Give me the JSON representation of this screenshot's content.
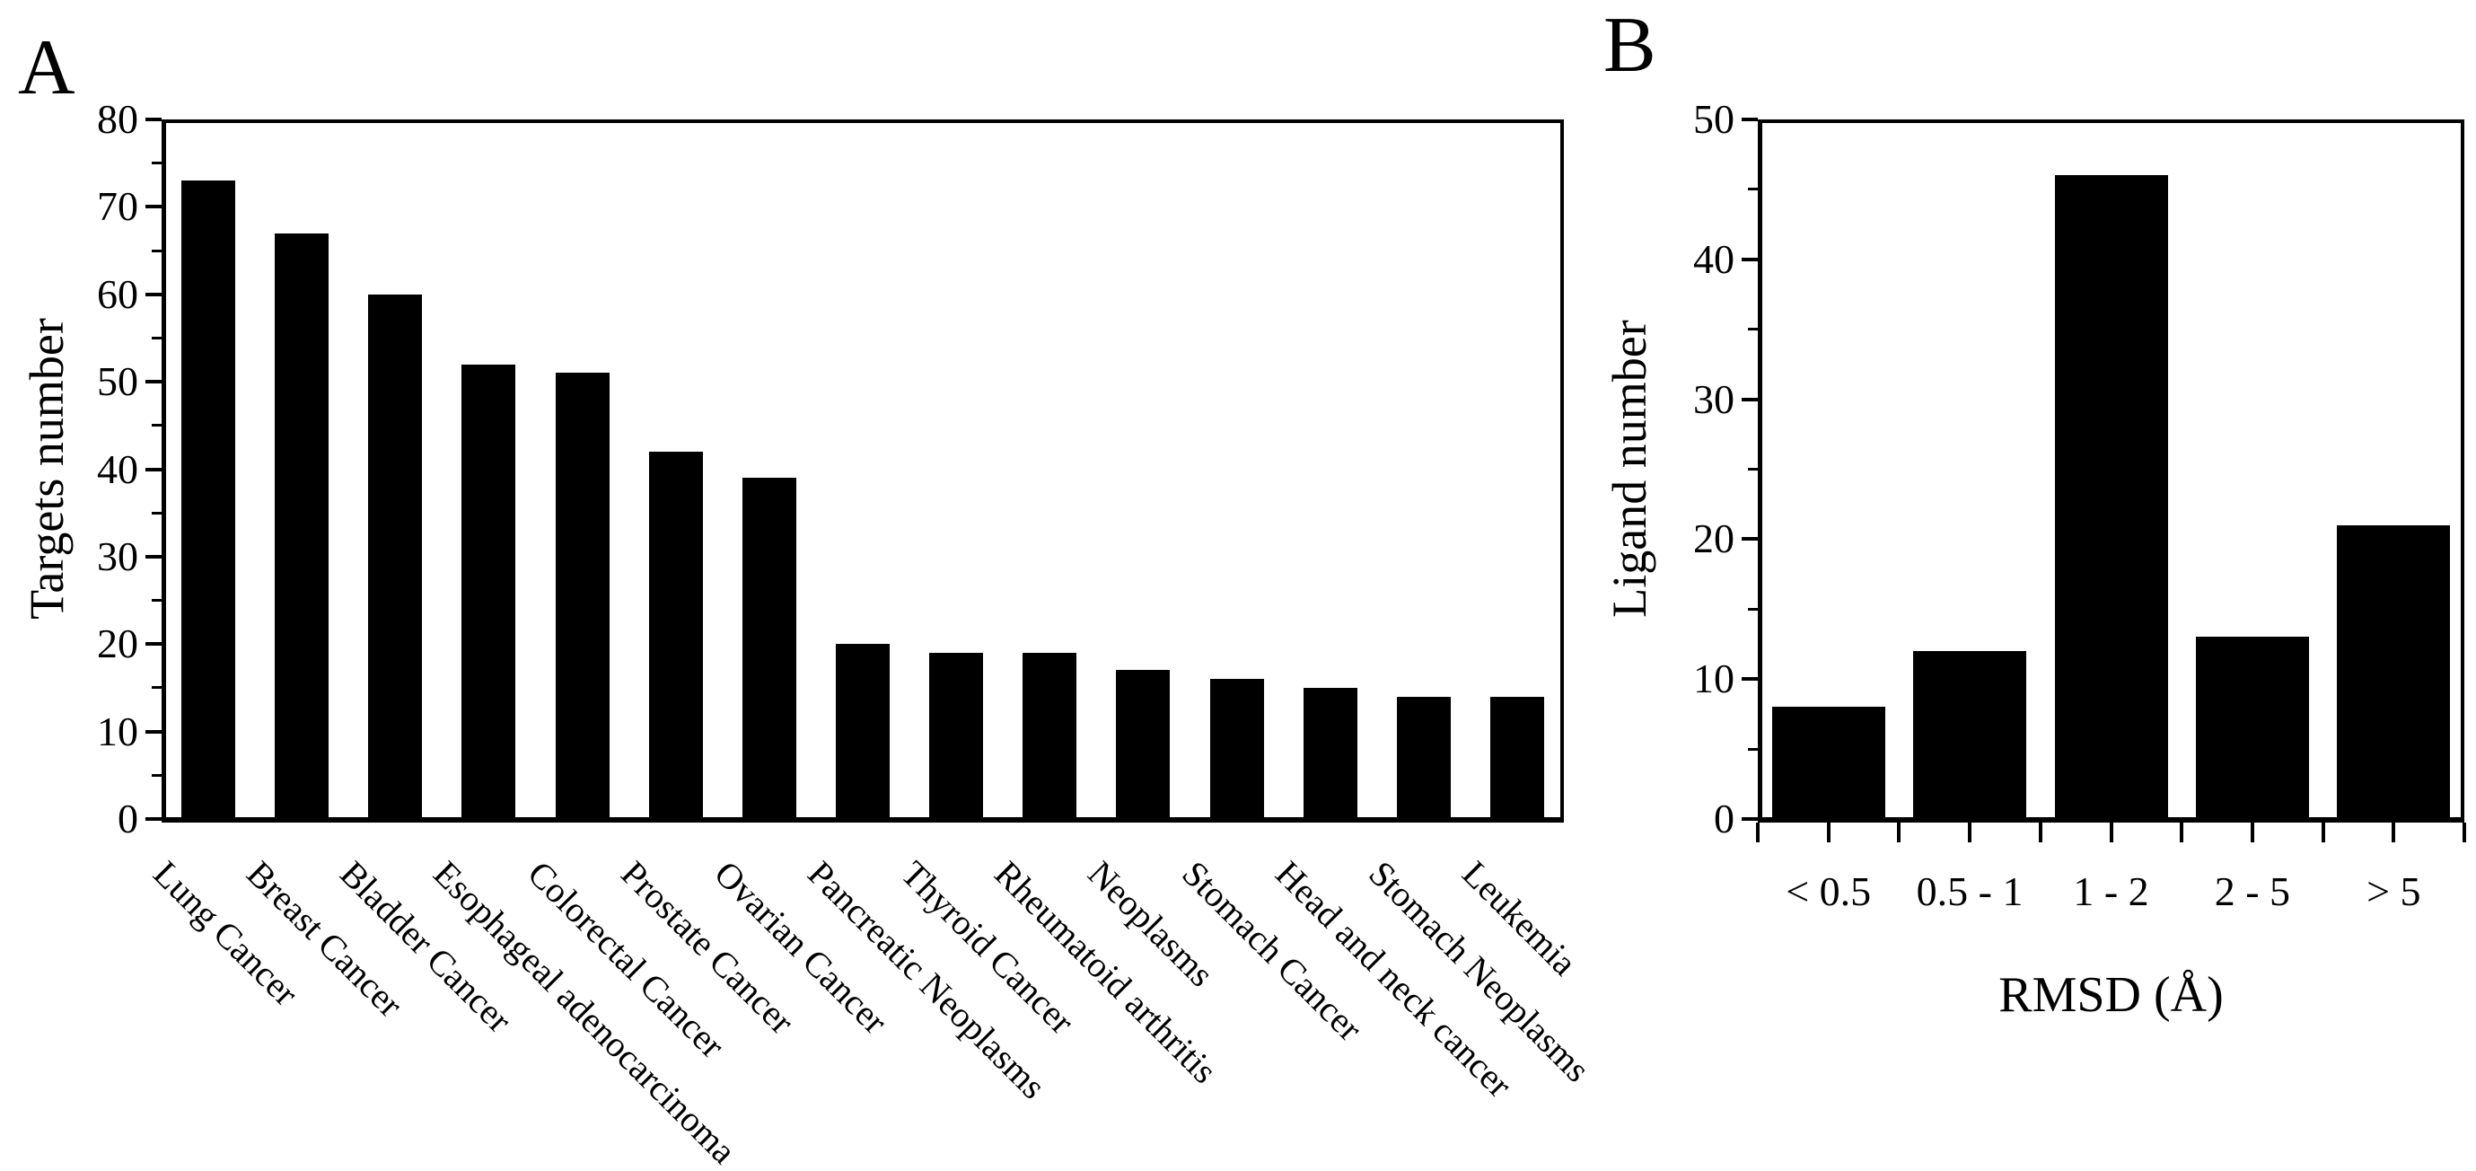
{
  "figure": {
    "background_color": "#ffffff",
    "bar_color": "#000000",
    "axis_color": "#000000",
    "text_color": "#000000",
    "panels": [
      {
        "label": "A",
        "y_axis": {
          "title": "Targets number",
          "min": 0,
          "max": 80,
          "major_tick_step": 10,
          "minor_tick_step": 5,
          "tick_labels": [
            "0",
            "10",
            "20",
            "30",
            "40",
            "50",
            "60",
            "70",
            "80"
          ]
        },
        "x_axis": {
          "title": ""
        }
      },
      {
        "label": "B",
        "y_axis": {
          "title": "Ligand number",
          "min": 0,
          "max": 50,
          "major_tick_step": 10,
          "minor_tick_step": 5,
          "tick_labels": [
            "0",
            "10",
            "20",
            "30",
            "40",
            "50"
          ]
        },
        "x_axis": {
          "title": "RMSD (Å)"
        }
      }
    ]
  },
  "chart_data": [
    {
      "type": "bar",
      "panel": "A",
      "title": "",
      "xlabel": "",
      "ylabel": "Targets number",
      "ylim": [
        0,
        80
      ],
      "grid": false,
      "legend": false,
      "bar_orientation": "vertical",
      "categories": [
        "Lung Cancer",
        "Breast Cancer",
        "Bladder Cancer",
        "Esophageal adenocarcinoma",
        "Colorectal Cancer",
        "Prostate Cancer",
        "Ovarian Cancer",
        "Pancreatic Neoplasms",
        "Thyroid Cancer",
        "Rheumatoid arthritis",
        "Neoplasms",
        "Stomach Cancer",
        "Head and neck cancer",
        "Stomach Neoplasms",
        "Leukemia"
      ],
      "values": [
        73,
        67,
        60,
        52,
        51,
        42,
        39,
        20,
        19,
        19,
        17,
        16,
        15,
        14,
        14
      ]
    },
    {
      "type": "bar",
      "panel": "B",
      "title": "",
      "xlabel": "RMSD (Å)",
      "ylabel": "Ligand number",
      "ylim": [
        0,
        50
      ],
      "grid": false,
      "legend": false,
      "bar_orientation": "vertical",
      "categories": [
        "< 0.5",
        "0.5 - 1",
        "1 - 2",
        "2 - 5",
        "> 5"
      ],
      "values": [
        8,
        12,
        46,
        13,
        21
      ]
    }
  ]
}
